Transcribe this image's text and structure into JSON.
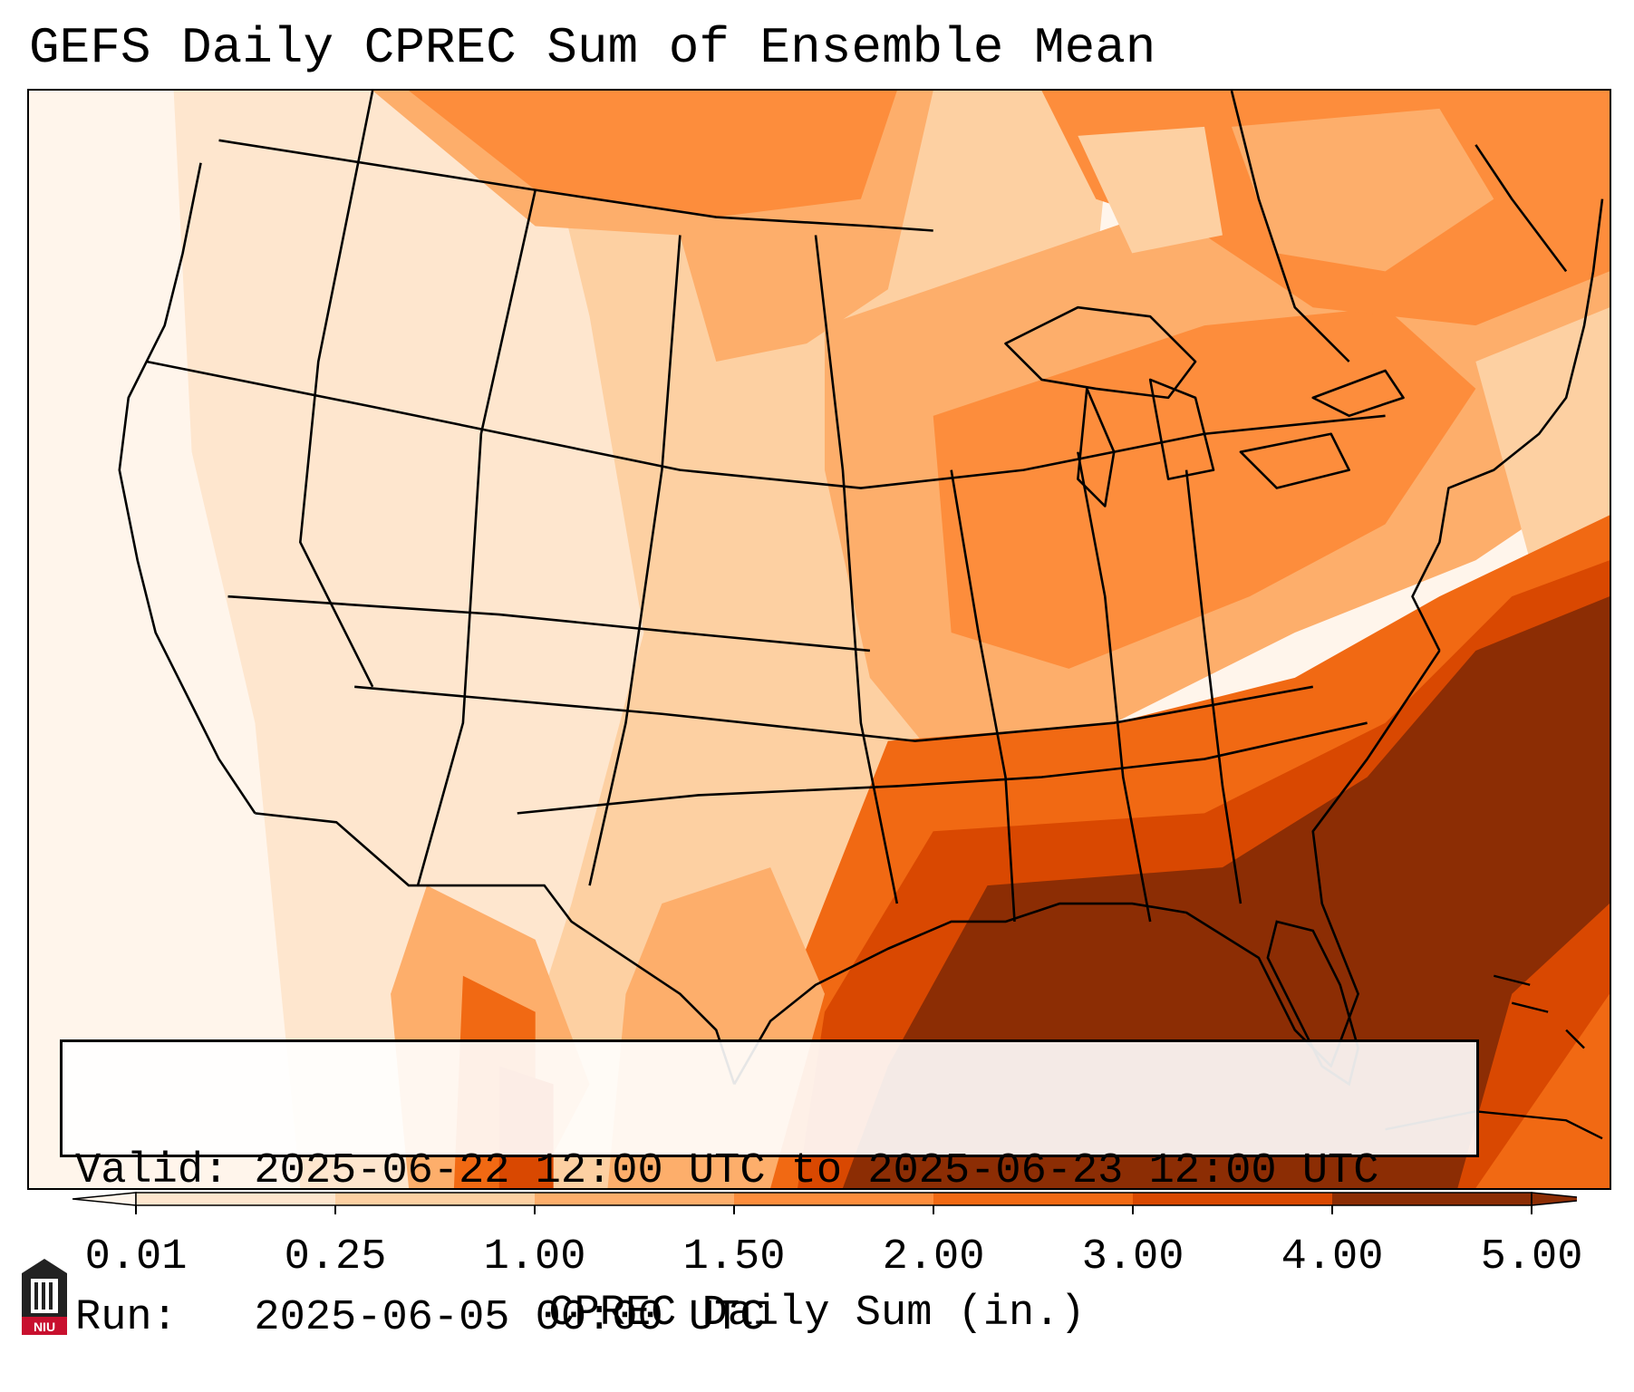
{
  "title": "GEFS Daily CPREC Sum of Ensemble Mean",
  "valid_line": "Valid: 2025-06-22 12:00 UTC to 2025-06-23 12:00 UTC",
  "run_line": "Run:   2025-06-05 00:00 UTC",
  "colorbar": {
    "label": "CPREC Daily Sum (in.)",
    "ticks": [
      "0.01",
      "0.25",
      "1.00",
      "1.50",
      "2.00",
      "3.00",
      "4.00",
      "5.00"
    ],
    "colors": [
      "#fff5eb",
      "#fee6ce",
      "#fdd0a2",
      "#fdae6b",
      "#fd8d3c",
      "#f16913",
      "#d94801",
      "#8c2d04"
    ],
    "extend": "both"
  },
  "logo": {
    "text": "NIU",
    "color": "#c8102e"
  }
}
